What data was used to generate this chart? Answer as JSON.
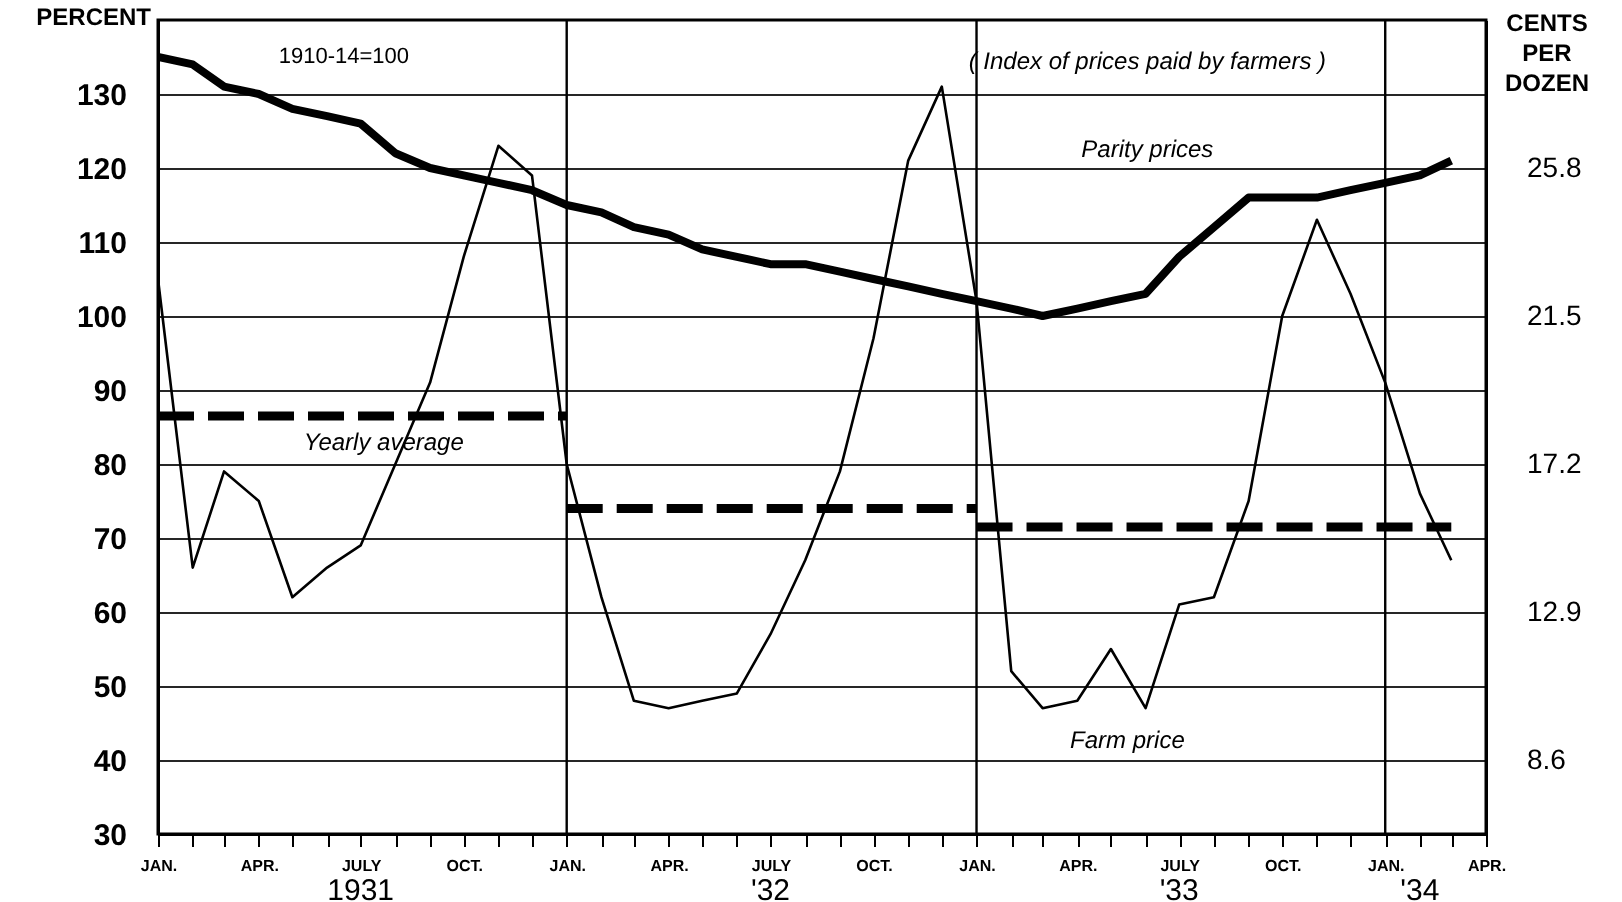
{
  "chart_data": {
    "type": "line",
    "ylabel": "PERCENT",
    "y2label": "CENTS PER DOZEN",
    "annotations": [
      "1910-14=100",
      "( Index of prices paid by farmers )"
    ],
    "x": [
      "1931-01",
      "1931-02",
      "1931-03",
      "1931-04",
      "1931-05",
      "1931-06",
      "1931-07",
      "1931-08",
      "1931-09",
      "1931-10",
      "1931-11",
      "1931-12",
      "1932-01",
      "1932-02",
      "1932-03",
      "1932-04",
      "1932-05",
      "1932-06",
      "1932-07",
      "1932-08",
      "1932-09",
      "1932-10",
      "1932-11",
      "1932-12",
      "1933-01",
      "1933-02",
      "1933-03",
      "1933-04",
      "1933-05",
      "1933-06",
      "1933-07",
      "1933-08",
      "1933-09",
      "1933-10",
      "1933-11",
      "1933-12",
      "1934-01",
      "1934-02",
      "1934-03"
    ],
    "series": [
      {
        "name": "Parity prices",
        "color": "#000000",
        "values": [
          135,
          134,
          131,
          130,
          128,
          127,
          126,
          122,
          120,
          119,
          118,
          117,
          115,
          114,
          112,
          111,
          109,
          108,
          107,
          107,
          106,
          105,
          104,
          103,
          102,
          101,
          100,
          101,
          102,
          103,
          108,
          112,
          116,
          116,
          116,
          117,
          118,
          119,
          121
        ]
      },
      {
        "name": "Farm price",
        "color": "#000000",
        "values": [
          105,
          66,
          79,
          75,
          62,
          66,
          69,
          80,
          91,
          108,
          123,
          119,
          80,
          62,
          48,
          47,
          48,
          49,
          57,
          67,
          79,
          97,
          121,
          131,
          102,
          52,
          47,
          48,
          55,
          47,
          61,
          62,
          75,
          100,
          113,
          103,
          91,
          76,
          67
        ]
      },
      {
        "name": "Yearly average",
        "color": "#000000",
        "line_style": "dashed",
        "x": [
          "1931-01",
          "1932-01"
        ],
        "values": [
          86.5,
          86.5
        ]
      },
      {
        "color": "#000000",
        "line_style": "dashed",
        "x": [
          "1932-01",
          "1933-01"
        ],
        "values": [
          74,
          74
        ]
      },
      {
        "color": "#000000",
        "line_style": "dashed",
        "x": [
          "1933-01",
          "1934-03"
        ],
        "values": [
          71.5,
          71.5
        ]
      }
    ],
    "xlim": [
      "1931-01",
      "1934-04"
    ],
    "xticks": [
      {
        "value": "1931-01",
        "label": "JAN."
      },
      {
        "value": "1931-02",
        "label": null
      },
      {
        "value": "1931-03",
        "label": null
      },
      {
        "value": "1931-04",
        "label": "APR."
      },
      {
        "value": "1931-05",
        "label": null
      },
      {
        "value": "1931-06",
        "label": null
      },
      {
        "value": "1931-07",
        "label": "JULY"
      },
      {
        "value": "1931-08",
        "label": null
      },
      {
        "value": "1931-09",
        "label": null
      },
      {
        "value": "1931-10",
        "label": "OCT."
      },
      {
        "value": "1931-11",
        "label": null
      },
      {
        "value": "1931-12",
        "label": null
      },
      {
        "value": "1932-01",
        "label": "JAN."
      },
      {
        "value": "1932-02",
        "label": null
      },
      {
        "value": "1932-03",
        "label": null
      },
      {
        "value": "1932-04",
        "label": "APR."
      },
      {
        "value": "1932-05",
        "label": null
      },
      {
        "value": "1932-06",
        "label": null
      },
      {
        "value": "1932-07",
        "label": "JULY"
      },
      {
        "value": "1932-08",
        "label": null
      },
      {
        "value": "1932-09",
        "label": null
      },
      {
        "value": "1932-10",
        "label": "OCT."
      },
      {
        "value": "1932-11",
        "label": null
      },
      {
        "value": "1932-12",
        "label": null
      },
      {
        "value": "1933-01",
        "label": "JAN."
      },
      {
        "value": "1933-02",
        "label": null
      },
      {
        "value": "1933-03",
        "label": null
      },
      {
        "value": "1933-04",
        "label": "APR."
      },
      {
        "value": "1933-05",
        "label": null
      },
      {
        "value": "1933-06",
        "label": null
      },
      {
        "value": "1933-07",
        "label": "JULY"
      },
      {
        "value": "1933-08",
        "label": null
      },
      {
        "value": "1933-09",
        "label": null
      },
      {
        "value": "1933-10",
        "label": "OCT."
      },
      {
        "value": "1933-11",
        "label": null
      },
      {
        "value": "1933-12",
        "label": null
      },
      {
        "value": "1934-01",
        "label": "JAN."
      },
      {
        "value": "1934-02",
        "label": null
      },
      {
        "value": "1934-03",
        "label": null
      },
      {
        "value": "1934-04",
        "label": "APR."
      }
    ],
    "x2lim": [
      "1931-01",
      "1934-04"
    ],
    "x2ticks": [
      {
        "value": "1931-07",
        "label": "1931"
      },
      {
        "value": "1932-07",
        "label": "'32"
      },
      {
        "value": "1933-07",
        "label": "'33"
      },
      {
        "value": "1934-02",
        "label": "'34"
      }
    ],
    "ylim": [
      30,
      140
    ],
    "yticks": [
      30,
      40,
      50,
      60,
      70,
      80,
      90,
      100,
      110,
      120,
      130
    ],
    "y2lim": [
      6.45,
      30.1
    ],
    "y2ticks": [
      8.6,
      12.9,
      17.2,
      21.5,
      25.8
    ],
    "ref_lines": [
      {
        "axis": "x",
        "value": "1932-01"
      },
      {
        "axis": "x",
        "value": "1933-01"
      },
      {
        "axis": "x",
        "value": "1934-01"
      }
    ],
    "grid": "y"
  }
}
